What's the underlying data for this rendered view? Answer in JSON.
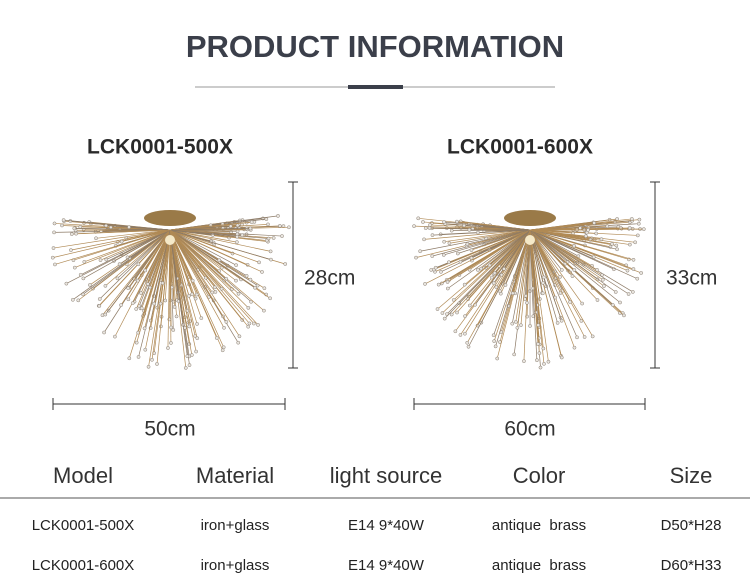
{
  "header": {
    "title": "PRODUCT INFORMATION"
  },
  "products": [
    {
      "model": "LCK0001-500X",
      "height": "28cm",
      "width": "50cm"
    },
    {
      "model": "LCK0001-600X",
      "height": "33cm",
      "width": "60cm"
    }
  ],
  "table": {
    "columns": [
      "Model",
      "Material",
      "light source",
      "Color",
      "Size"
    ],
    "rows": [
      [
        "LCK0001-500X",
        "iron+glass",
        "E14 9*40W",
        "antique  brass",
        "D50*H28"
      ],
      [
        "LCK0001-600X",
        "iron+glass",
        "E14 9*40W",
        "antique  brass",
        "D60*H33"
      ]
    ]
  }
}
